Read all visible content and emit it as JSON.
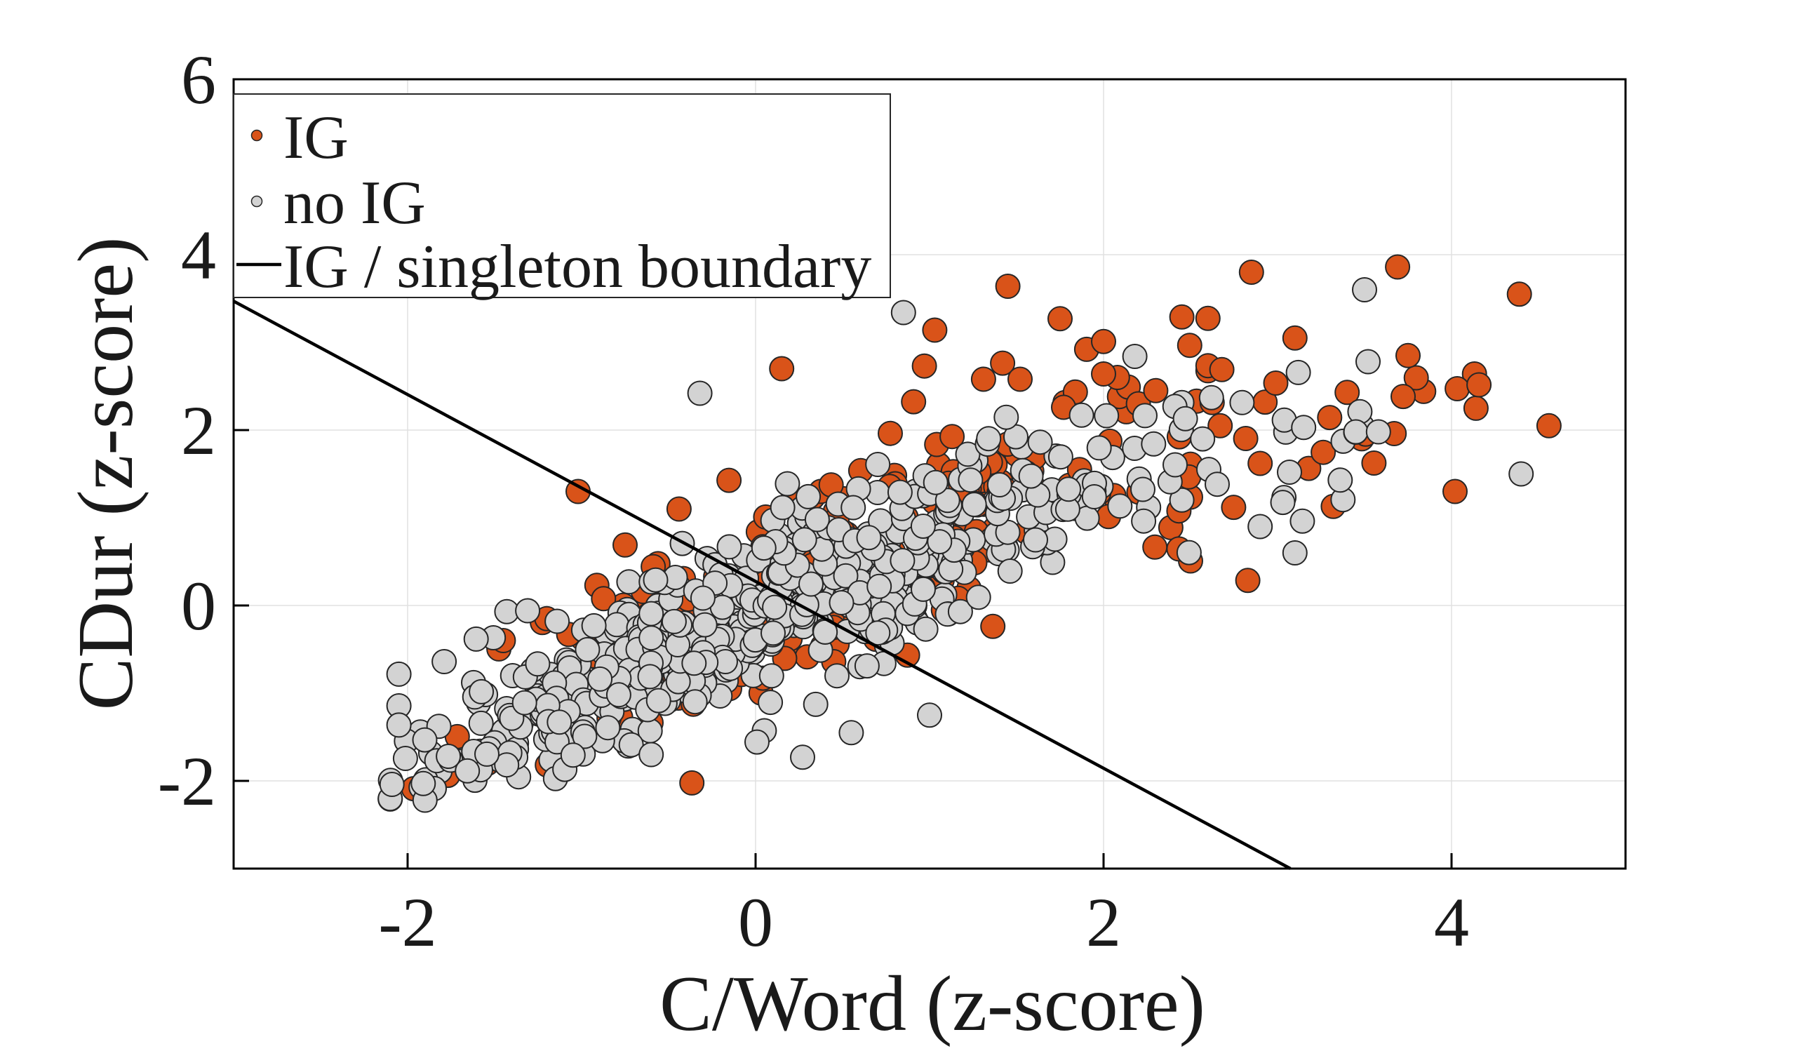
{
  "figure": {
    "background": "#ffffff",
    "title": ""
  },
  "chart_data": {
    "type": "scatter",
    "title": "",
    "xlabel": "C/Word (z-score)",
    "ylabel": "CDur (z-score)",
    "xlim": [
      -3,
      5
    ],
    "ylim": [
      -3,
      6
    ],
    "xticks": [
      -2,
      0,
      2,
      4
    ],
    "yticks": [
      -2,
      0,
      2,
      4,
      6
    ],
    "xtick_labels": [
      "-2",
      "0",
      "2",
      "4"
    ],
    "ytick_labels": [
      "-2",
      "0",
      "2",
      "4",
      "6"
    ],
    "grid": true,
    "grid_color": "#e0e0e0",
    "axis_color": "#000000",
    "marker": {
      "radius_px": 17,
      "edge_color": "#262626",
      "edge_width": 2
    },
    "seed": 42,
    "legend": {
      "position": "northwest",
      "entries": [
        {
          "label": "IG",
          "type": "marker",
          "color": "#D95319"
        },
        {
          "label": "no IG",
          "type": "marker",
          "color": "#D3D3D3"
        },
        {
          "label": "IG / singleton boundary",
          "type": "line",
          "color": "#000000"
        }
      ]
    },
    "boundary_line": {
      "x": [
        -3,
        3.074
      ],
      "y": [
        3.47,
        -3
      ],
      "color": "#000000"
    },
    "series": [
      {
        "name": "IG",
        "color": "#D95319",
        "clusters": [
          {
            "n": 140,
            "xdist": {
              "type": "gauss",
              "mu": 0.3,
              "sigma": 1.0,
              "min": -2.0,
              "max": 2.5
            },
            "line": {
              "slope": 0.72,
              "intercept": -0.12,
              "noise": 0.5
            }
          },
          {
            "n": 60,
            "xdist": {
              "type": "gauss",
              "mu": 1.1,
              "sigma": 0.8,
              "min": -0.9,
              "max": 2.6
            },
            "line": {
              "slope": 0.75,
              "intercept": 0.5,
              "noise": 0.42,
              "skew": 0.25
            }
          },
          {
            "n": 14,
            "xdist": {
              "type": "uniform",
              "min": -1.7,
              "max": -0.4
            },
            "line": {
              "slope": 1.0,
              "intercept": 0.6,
              "noise": 0.28
            }
          },
          {
            "n": 16,
            "xdist": {
              "type": "uniform",
              "min": -1.85,
              "max": 1.2
            },
            "line": {
              "slope": 0.72,
              "intercept": -0.6,
              "noise": 0.22
            }
          },
          {
            "n": 22,
            "xdist": {
              "type": "uniform",
              "min": 2.3,
              "max": 4.2
            },
            "line": {
              "slope": 0.5,
              "intercept": 0.2,
              "noise": 0.5
            }
          }
        ],
        "points": [
          [
            1.45,
            3.64
          ],
          [
            1.03,
            3.14
          ],
          [
            1.75,
            3.27
          ],
          [
            2.0,
            3.01
          ],
          [
            2.45,
            3.29
          ],
          [
            2.85,
            3.8
          ],
          [
            3.69,
            3.86
          ],
          [
            4.39,
            3.55
          ],
          [
            4.56,
            2.05
          ],
          [
            4.02,
            1.3
          ],
          [
            3.32,
            1.13
          ],
          [
            3.4,
            2.43
          ],
          [
            3.67,
            1.96
          ],
          [
            2.68,
            2.69
          ],
          [
            2.08,
            2.6
          ],
          [
            0.97,
            2.73
          ],
          [
            1.31,
            2.58
          ],
          [
            1.52,
            2.58
          ],
          [
            1.77,
            2.26
          ],
          [
            2.0,
            2.64
          ],
          [
            2.2,
            2.3
          ],
          [
            2.3,
            2.45
          ],
          [
            2.67,
            2.05
          ],
          [
            0.15,
            2.7
          ],
          [
            -1.02,
            1.3
          ],
          [
            -0.44,
            1.1
          ],
          [
            -0.75,
            0.69
          ],
          [
            -1.45,
            -0.4
          ],
          [
            -1.2,
            -0.15
          ],
          [
            3.1,
            3.05
          ],
          [
            2.9,
            1.62
          ],
          [
            3.75,
            2.85
          ]
        ]
      },
      {
        "name": "no IG",
        "color": "#D3D3D3",
        "clusters": [
          {
            "n": 430,
            "xdist": {
              "type": "gauss",
              "mu": 0.1,
              "sigma": 0.95,
              "min": -2.05,
              "max": 2.45
            },
            "line": {
              "slope": 0.72,
              "intercept": -0.18,
              "noise": 0.44
            }
          },
          {
            "n": 120,
            "xdist": {
              "type": "gauss",
              "mu": -0.9,
              "sigma": 0.65,
              "min": -2.1,
              "max": 0.4
            },
            "line": {
              "slope": 0.78,
              "intercept": -0.3,
              "noise": 0.3
            }
          },
          {
            "n": 80,
            "xdist": {
              "type": "gauss",
              "mu": 0.9,
              "sigma": 0.75,
              "min": -0.6,
              "max": 2.5
            },
            "line": {
              "slope": 0.72,
              "intercept": 0.42,
              "noise": 0.38
            }
          },
          {
            "n": 18,
            "xdist": {
              "type": "uniform",
              "min": 2.4,
              "max": 3.5
            },
            "line": {
              "slope": 0.5,
              "intercept": 0.3,
              "noise": 0.45
            }
          }
        ],
        "points": [
          [
            3.5,
            3.6
          ],
          [
            3.52,
            2.78
          ],
          [
            3.15,
            2.03
          ],
          [
            2.62,
            2.37
          ],
          [
            2.47,
            2.13
          ],
          [
            2.18,
            2.84
          ],
          [
            0.85,
            3.34
          ],
          [
            -0.32,
            2.42
          ],
          [
            4.4,
            1.5
          ],
          [
            3.45,
            1.98
          ],
          [
            3.58,
            1.98
          ],
          [
            3.36,
            1.43
          ],
          [
            -2.09,
            -2.04
          ],
          [
            -1.9,
            -2.22
          ],
          [
            -1.91,
            -2.03
          ],
          [
            -0.6,
            -1.7
          ],
          [
            0.27,
            -1.73
          ],
          [
            1.0,
            -1.25
          ],
          [
            0.55,
            -1.45
          ],
          [
            -1.79,
            -0.64
          ],
          [
            -1.43,
            -0.07
          ],
          [
            -1.31,
            -0.06
          ],
          [
            2.9,
            0.9
          ],
          [
            3.1,
            0.6
          ]
        ]
      }
    ]
  }
}
